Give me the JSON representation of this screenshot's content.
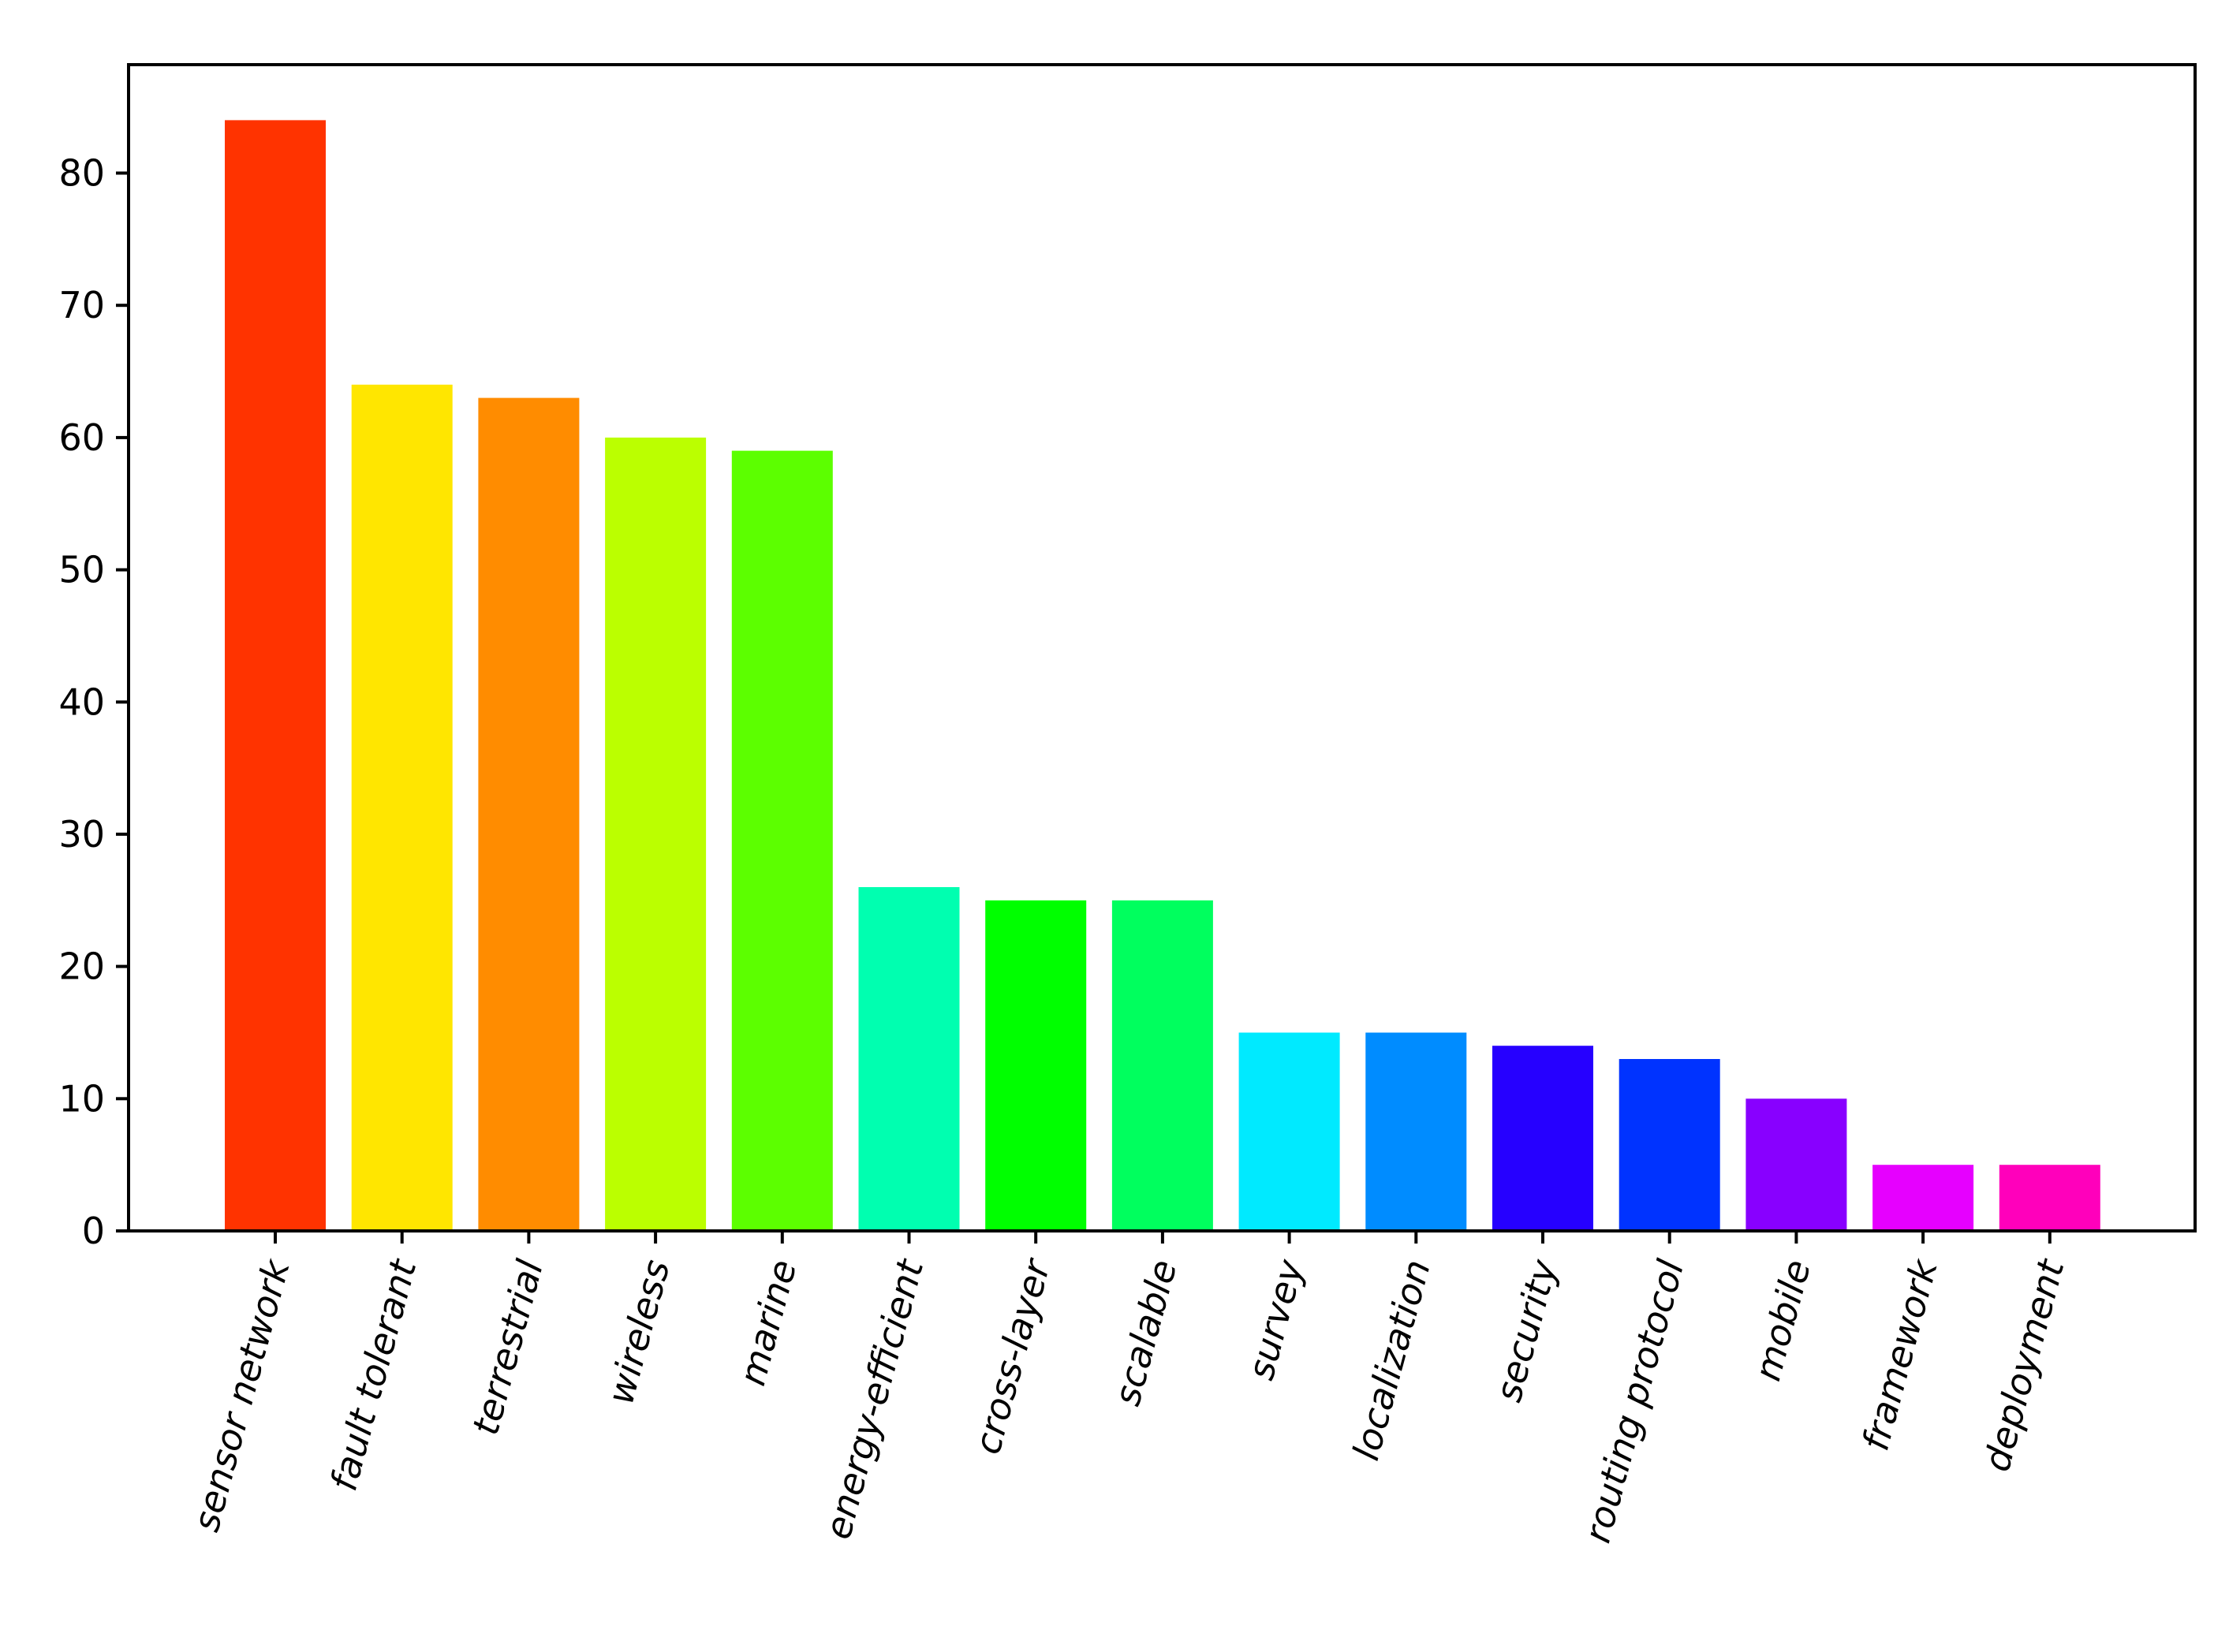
{
  "chart_data": {
    "type": "bar",
    "title": "",
    "xlabel": "",
    "ylabel": "",
    "ylim": [
      0,
      88.2
    ],
    "yticks": [
      0,
      10,
      20,
      30,
      40,
      50,
      60,
      70,
      80
    ],
    "grid": false,
    "legend": "none",
    "categories": [
      "sensor network",
      "fault tolerant",
      "terrestrial",
      "wireless",
      "marine",
      "energy-efficient",
      "cross-layer",
      "scalable",
      "survey",
      "localization",
      "security",
      "routing protocol",
      "mobile",
      "framework",
      "deployment"
    ],
    "values": [
      84,
      64,
      63,
      60,
      59,
      26,
      25,
      25,
      15,
      15,
      14,
      13,
      10,
      5,
      5
    ],
    "colors": [
      "#ff3300",
      "#ffe600",
      "#ff8c00",
      "#bbff00",
      "#5cff00",
      "#00ffb0",
      "#00ff00",
      "#00ff5e",
      "#00eaff",
      "#008cff",
      "#2600ff",
      "#0033ff",
      "#8800ff",
      "#e600ff",
      "#ff00bb"
    ]
  }
}
